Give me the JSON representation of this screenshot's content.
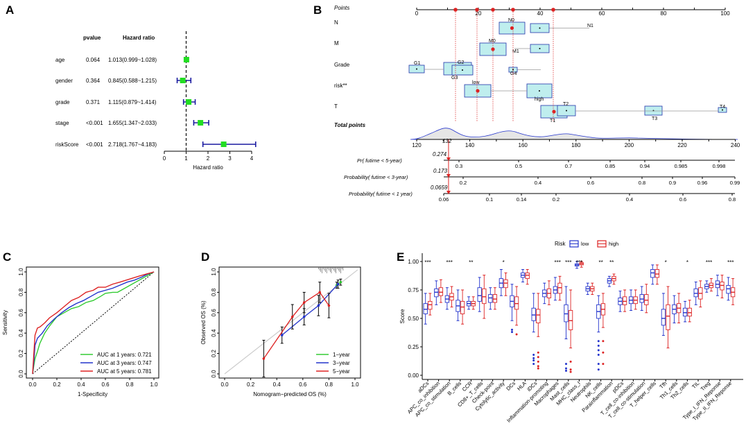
{
  "panels": {
    "A": "A",
    "B": "B",
    "C": "C",
    "D": "D",
    "E": "E"
  },
  "chart_data": [
    {
      "panel": "A",
      "type": "forest",
      "headers": {
        "pvalue": "pvalue",
        "hr": "Hazard ratio"
      },
      "xlabel": "Hazard ratio",
      "xlim": [
        0,
        4.4
      ],
      "xticks": [
        "0",
        "1",
        "2",
        "3",
        "4"
      ],
      "rows": [
        {
          "name": "age",
          "pvalue": "0.064",
          "hr_text": "1.013(0.999~1.028)",
          "hr": 1.013,
          "lo": 0.999,
          "hi": 1.028
        },
        {
          "name": "gender",
          "pvalue": "0.364",
          "hr_text": "0.845(0.588~1.215)",
          "hr": 0.845,
          "lo": 0.588,
          "hi": 1.215
        },
        {
          "name": "grade",
          "pvalue": "0.371",
          "hr_text": "1.115(0.879~1.414)",
          "hr": 1.115,
          "lo": 0.879,
          "hi": 1.414
        },
        {
          "name": "stage",
          "pvalue": "<0.001",
          "hr_text": "1.655(1.347~2.033)",
          "hr": 1.655,
          "lo": 1.347,
          "hi": 2.033
        },
        {
          "name": "riskScore",
          "pvalue": "<0.001",
          "hr_text": "2.718(1.767~4.183)",
          "hr": 2.718,
          "lo": 1.767,
          "hi": 4.183
        }
      ],
      "colors": {
        "point": "#22dd22",
        "ci": "#1a1aa0"
      }
    },
    {
      "panel": "B",
      "type": "nomogram",
      "points_label": "Points",
      "points_ticks": [
        "0",
        "20",
        "40",
        "60",
        "80",
        "100"
      ],
      "variables": [
        {
          "label": "N",
          "levels": [
            "N0",
            "N1"
          ]
        },
        {
          "label": "M",
          "levels": [
            "M0",
            "M1"
          ]
        },
        {
          "label": "Grade",
          "levels": [
            "G1",
            "G2",
            "G3",
            "G4"
          ]
        },
        {
          "label": "risk**",
          "levels": [
            "low",
            "high"
          ]
        },
        {
          "label": "T",
          "levels": [
            "T1",
            "T2",
            "T3",
            "T4"
          ]
        }
      ],
      "total_label": "Total points",
      "total_ticks": [
        "120",
        "140",
        "160",
        "180",
        "200",
        "220",
        "240"
      ],
      "total_value": "132",
      "prob_scales": [
        {
          "label": "Pr( futime < 5-year)",
          "value": "0.274",
          "ticks": [
            "0.3",
            "0.5",
            "0.7",
            "0.85",
            "0.94",
            "0.985",
            "0.998"
          ]
        },
        {
          "label": "Probability( futime < 3-year)",
          "value": "0.173",
          "ticks": [
            "0.2",
            "0.4",
            "0.6",
            "0.8",
            "0.9",
            "0.96",
            "0.99"
          ]
        },
        {
          "label": "Probability( futime < 1 year)",
          "value": "0.0659",
          "ticks": [
            "0.06",
            "0.1",
            "0.14",
            "0.2",
            "0.4",
            "0.6",
            "0.8"
          ]
        }
      ]
    },
    {
      "panel": "C",
      "type": "line",
      "ylabel": "Sensitivity",
      "xlabel": "1-Specificity",
      "xticks": [
        "0.0",
        "0.2",
        "0.4",
        "0.6",
        "0.8",
        "1.0"
      ],
      "yticks": [
        "0.0",
        "0.2",
        "0.4",
        "0.6",
        "0.8",
        "1.0"
      ],
      "series": [
        {
          "name": "AUC at 1 years: 0.721",
          "color": "#33cc33",
          "x": [
            0,
            0.01,
            0.02,
            0.04,
            0.06,
            0.1,
            0.14,
            0.2,
            0.26,
            0.32,
            0.38,
            0.44,
            0.5,
            0.56,
            0.6,
            0.66,
            0.7,
            0.76,
            0.82,
            0.88,
            0.94,
            1
          ],
          "y": [
            0,
            0.08,
            0.15,
            0.22,
            0.3,
            0.4,
            0.47,
            0.56,
            0.6,
            0.64,
            0.66,
            0.7,
            0.72,
            0.76,
            0.79,
            0.8,
            0.8,
            0.84,
            0.88,
            0.92,
            0.96,
            1
          ]
        },
        {
          "name": "AUC at 3 years: 0.747",
          "color": "#2233cc",
          "x": [
            0,
            0.01,
            0.02,
            0.04,
            0.08,
            0.12,
            0.18,
            0.24,
            0.3,
            0.36,
            0.42,
            0.48,
            0.54,
            0.6,
            0.66,
            0.72,
            0.78,
            0.84,
            0.9,
            0.95,
            1
          ],
          "y": [
            0,
            0.12,
            0.28,
            0.35,
            0.4,
            0.47,
            0.54,
            0.6,
            0.65,
            0.69,
            0.72,
            0.76,
            0.8,
            0.82,
            0.84,
            0.87,
            0.9,
            0.92,
            0.95,
            0.98,
            1
          ]
        },
        {
          "name": "AUC at 5 years: 0.781",
          "color": "#dd2222",
          "x": [
            0,
            0.01,
            0.02,
            0.04,
            0.06,
            0.1,
            0.14,
            0.2,
            0.26,
            0.32,
            0.38,
            0.44,
            0.5,
            0.54,
            0.6,
            0.66,
            0.72,
            0.8,
            0.88,
            0.94,
            1
          ],
          "y": [
            0,
            0.2,
            0.38,
            0.45,
            0.46,
            0.5,
            0.55,
            0.6,
            0.66,
            0.72,
            0.75,
            0.8,
            0.82,
            0.85,
            0.85,
            0.88,
            0.9,
            0.93,
            0.96,
            0.98,
            1
          ]
        }
      ],
      "reference": "diagonal dashed"
    },
    {
      "panel": "D",
      "type": "calibration",
      "ylabel": "Observed OS (%)",
      "xlabel": "Nomogram−predicted OS (%)",
      "xticks": [
        "0.0",
        "0.2",
        "0.4",
        "0.6",
        "0.8",
        "1.0"
      ],
      "yticks": [
        "0.0",
        "0.2",
        "0.4",
        "0.6",
        "0.8",
        "1.0"
      ],
      "series": [
        {
          "name": "1−year",
          "color": "#33cc33",
          "x": [
            0.86,
            0.89
          ],
          "y": [
            0.87,
            0.9
          ],
          "err": [
            0.03,
            0.03
          ]
        },
        {
          "name": "3−year",
          "color": "#2233cc",
          "x": [
            0.44,
            0.61,
            0.72,
            0.87
          ],
          "y": [
            0.38,
            0.56,
            0.67,
            0.88
          ],
          "err": [
            0.08,
            0.08,
            0.1,
            0.04
          ]
        },
        {
          "name": "5−year",
          "color": "#dd2222",
          "x": [
            0.3,
            0.52,
            0.61,
            0.73,
            0.8
          ],
          "y": [
            0.15,
            0.56,
            0.7,
            0.8,
            0.67
          ],
          "err": [
            0.18,
            0.12,
            0.1,
            0.1,
            0.12
          ]
        }
      ]
    },
    {
      "panel": "E",
      "type": "boxplot",
      "ylabel": "Score",
      "legend_title": "Risk",
      "legend": [
        {
          "name": "low",
          "color": "#2233cc"
        },
        {
          "name": "high",
          "color": "#dd2222"
        }
      ],
      "yticks": [
        "0.00",
        "0.25",
        "0.50",
        "0.75",
        "1.00"
      ],
      "categories": [
        "aDCs",
        "APC_co_inhibition",
        "APC_co_stimulation",
        "B_cells",
        "CCR",
        "CD8+_T_cells",
        "Check-point",
        "Cytolytic_activity",
        "DCs",
        "HLA",
        "iDCs",
        "Inflammation-promoting",
        "Macrophages",
        "Mast_cells",
        "MHC_class_I",
        "Neutrophils",
        "NK_cells",
        "Parainflammation",
        "pDCs",
        "T_cell_co-inhibition",
        "T_cell_co-stimulation",
        "T_helper_cells",
        "Tfh",
        "Th1_cells",
        "Th2_cells",
        "TIL",
        "Treg",
        "Type_I_IFN_Reponse",
        "Type_II_IFN_Reponse"
      ],
      "significance": [
        "***",
        "",
        "***",
        "",
        "**",
        "",
        "",
        "*",
        "",
        "",
        "",
        "",
        "***",
        "***",
        "***",
        "",
        "**",
        "**",
        "",
        "",
        "",
        "",
        "*",
        "",
        "*",
        "",
        "***",
        "",
        "***"
      ],
      "low": [
        [
          0.45,
          0.54,
          0.58,
          0.63,
          0.72
        ],
        [
          0.62,
          0.69,
          0.73,
          0.76,
          0.83
        ],
        [
          0.58,
          0.64,
          0.67,
          0.7,
          0.77
        ],
        [
          0.48,
          0.56,
          0.61,
          0.66,
          0.75
        ],
        [
          0.58,
          0.61,
          0.63,
          0.65,
          0.69
        ],
        [
          0.56,
          0.65,
          0.7,
          0.77,
          0.86
        ],
        [
          0.58,
          0.64,
          0.68,
          0.71,
          0.77
        ],
        [
          0.7,
          0.77,
          0.81,
          0.85,
          0.93
        ],
        [
          0.48,
          0.6,
          0.65,
          0.7,
          0.8
        ],
        [
          0.82,
          0.86,
          0.88,
          0.9,
          0.93
        ],
        [
          0.38,
          0.48,
          0.53,
          0.59,
          0.72
        ],
        [
          0.63,
          0.69,
          0.72,
          0.75,
          0.81
        ],
        [
          0.66,
          0.72,
          0.75,
          0.78,
          0.86
        ],
        [
          0.32,
          0.47,
          0.54,
          0.62,
          0.78
        ],
        [
          0.94,
          0.96,
          0.97,
          0.98,
          1.0
        ],
        [
          0.71,
          0.74,
          0.76,
          0.78,
          0.81
        ],
        [
          0.38,
          0.5,
          0.56,
          0.62,
          0.7
        ],
        [
          0.78,
          0.81,
          0.83,
          0.85,
          0.87
        ],
        [
          0.56,
          0.62,
          0.65,
          0.68,
          0.74
        ],
        [
          0.57,
          0.63,
          0.66,
          0.69,
          0.75
        ],
        [
          0.57,
          0.64,
          0.67,
          0.71,
          0.78
        ],
        [
          0.8,
          0.86,
          0.9,
          0.93,
          0.97
        ],
        [
          0.35,
          0.44,
          0.5,
          0.58,
          0.72
        ],
        [
          0.46,
          0.54,
          0.58,
          0.62,
          0.7
        ],
        [
          0.47,
          0.52,
          0.55,
          0.59,
          0.65
        ],
        [
          0.62,
          0.69,
          0.72,
          0.76,
          0.82
        ],
        [
          0.73,
          0.76,
          0.78,
          0.8,
          0.83
        ],
        [
          0.7,
          0.77,
          0.8,
          0.83,
          0.88
        ],
        [
          0.66,
          0.72,
          0.76,
          0.79,
          0.86
        ]
      ],
      "high": [
        [
          0.53,
          0.58,
          0.62,
          0.65,
          0.72
        ],
        [
          0.64,
          0.7,
          0.73,
          0.77,
          0.84
        ],
        [
          0.6,
          0.66,
          0.69,
          0.72,
          0.78
        ],
        [
          0.45,
          0.54,
          0.6,
          0.65,
          0.75
        ],
        [
          0.58,
          0.61,
          0.63,
          0.65,
          0.69
        ],
        [
          0.5,
          0.63,
          0.69,
          0.76,
          0.88
        ],
        [
          0.58,
          0.64,
          0.67,
          0.71,
          0.77
        ],
        [
          0.7,
          0.77,
          0.81,
          0.84,
          0.9
        ],
        [
          0.44,
          0.58,
          0.63,
          0.69,
          0.78
        ],
        [
          0.8,
          0.85,
          0.88,
          0.9,
          0.93
        ],
        [
          0.34,
          0.46,
          0.53,
          0.58,
          0.72
        ],
        [
          0.62,
          0.68,
          0.72,
          0.76,
          0.83
        ],
        [
          0.66,
          0.72,
          0.77,
          0.81,
          0.87
        ],
        [
          0.24,
          0.4,
          0.48,
          0.57,
          0.75
        ],
        [
          0.95,
          0.97,
          0.98,
          0.99,
          1.0
        ],
        [
          0.71,
          0.74,
          0.76,
          0.78,
          0.81
        ],
        [
          0.42,
          0.53,
          0.58,
          0.63,
          0.72
        ],
        [
          0.8,
          0.83,
          0.85,
          0.87,
          0.89
        ],
        [
          0.56,
          0.62,
          0.65,
          0.69,
          0.75
        ],
        [
          0.58,
          0.63,
          0.66,
          0.69,
          0.75
        ],
        [
          0.55,
          0.62,
          0.66,
          0.71,
          0.8
        ],
        [
          0.8,
          0.86,
          0.89,
          0.93,
          0.97
        ],
        [
          0.24,
          0.4,
          0.52,
          0.62,
          0.78
        ],
        [
          0.46,
          0.55,
          0.59,
          0.63,
          0.72
        ],
        [
          0.47,
          0.52,
          0.55,
          0.59,
          0.66
        ],
        [
          0.6,
          0.67,
          0.72,
          0.77,
          0.83
        ],
        [
          0.74,
          0.77,
          0.79,
          0.81,
          0.85
        ],
        [
          0.68,
          0.75,
          0.79,
          0.82,
          0.88
        ],
        [
          0.62,
          0.69,
          0.73,
          0.77,
          0.85
        ]
      ]
    }
  ]
}
